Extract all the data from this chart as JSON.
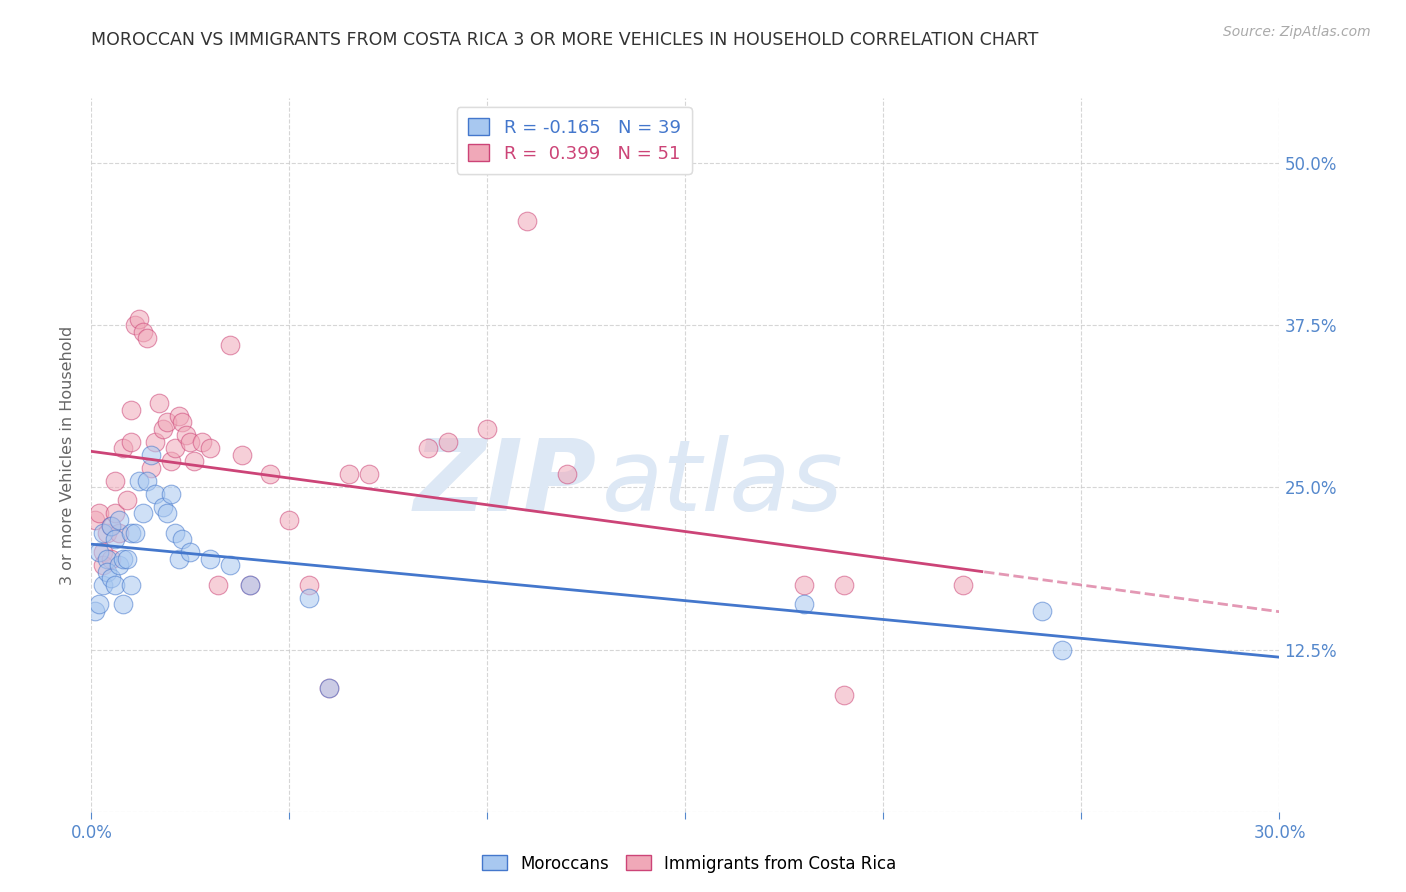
{
  "title": "MOROCCAN VS IMMIGRANTS FROM COSTA RICA 3 OR MORE VEHICLES IN HOUSEHOLD CORRELATION CHART",
  "source": "Source: ZipAtlas.com",
  "ylabel": "3 or more Vehicles in Household",
  "xlim": [
    0.0,
    0.3
  ],
  "ylim": [
    0.0,
    0.55
  ],
  "yticks": [
    0.0,
    0.125,
    0.25,
    0.375,
    0.5
  ],
  "ytick_labels": [
    "",
    "12.5%",
    "25.0%",
    "37.5%",
    "50.0%"
  ],
  "xticks": [
    0.0,
    0.05,
    0.1,
    0.15,
    0.2,
    0.25,
    0.3
  ],
  "xtick_labels": [
    "0.0%",
    "",
    "",
    "",
    "",
    "",
    "30.0%"
  ],
  "moroccan_color": "#a8c8f0",
  "costa_rica_color": "#f0a8b8",
  "moroccan_line_color": "#4477cc",
  "costa_rica_line_color": "#cc4477",
  "background_color": "#ffffff",
  "grid_color": "#cccccc",
  "watermark_zip": "ZIP",
  "watermark_atlas": "atlas",
  "watermark_color": "#dde8f5",
  "title_color": "#333333",
  "axis_label_color": "#666666",
  "tick_color": "#5588cc",
  "moroccan_R": -0.165,
  "moroccan_N": 39,
  "costa_rica_R": 0.399,
  "costa_rica_N": 51,
  "moroccan_x": [
    0.001,
    0.002,
    0.002,
    0.003,
    0.003,
    0.004,
    0.004,
    0.005,
    0.005,
    0.006,
    0.006,
    0.007,
    0.007,
    0.008,
    0.008,
    0.009,
    0.01,
    0.01,
    0.011,
    0.012,
    0.013,
    0.014,
    0.015,
    0.016,
    0.018,
    0.019,
    0.02,
    0.021,
    0.022,
    0.023,
    0.025,
    0.03,
    0.035,
    0.04,
    0.055,
    0.06,
    0.18,
    0.24,
    0.245
  ],
  "moroccan_y": [
    0.155,
    0.2,
    0.16,
    0.215,
    0.175,
    0.195,
    0.185,
    0.22,
    0.18,
    0.21,
    0.175,
    0.225,
    0.19,
    0.195,
    0.16,
    0.195,
    0.215,
    0.175,
    0.215,
    0.255,
    0.23,
    0.255,
    0.275,
    0.245,
    0.235,
    0.23,
    0.245,
    0.215,
    0.195,
    0.21,
    0.2,
    0.195,
    0.19,
    0.175,
    0.165,
    0.095,
    0.16,
    0.155,
    0.125
  ],
  "costa_rica_x": [
    0.001,
    0.002,
    0.003,
    0.003,
    0.004,
    0.005,
    0.005,
    0.006,
    0.006,
    0.007,
    0.008,
    0.009,
    0.01,
    0.01,
    0.011,
    0.012,
    0.013,
    0.014,
    0.015,
    0.016,
    0.017,
    0.018,
    0.019,
    0.02,
    0.021,
    0.022,
    0.023,
    0.024,
    0.025,
    0.026,
    0.028,
    0.03,
    0.032,
    0.035,
    0.038,
    0.04,
    0.045,
    0.05,
    0.055,
    0.06,
    0.065,
    0.07,
    0.085,
    0.09,
    0.1,
    0.11,
    0.12,
    0.18,
    0.19,
    0.22,
    0.19
  ],
  "costa_rica_y": [
    0.225,
    0.23,
    0.2,
    0.19,
    0.215,
    0.22,
    0.195,
    0.255,
    0.23,
    0.215,
    0.28,
    0.24,
    0.31,
    0.285,
    0.375,
    0.38,
    0.37,
    0.365,
    0.265,
    0.285,
    0.315,
    0.295,
    0.3,
    0.27,
    0.28,
    0.305,
    0.3,
    0.29,
    0.285,
    0.27,
    0.285,
    0.28,
    0.175,
    0.36,
    0.275,
    0.175,
    0.26,
    0.225,
    0.175,
    0.095,
    0.26,
    0.26,
    0.28,
    0.285,
    0.295,
    0.455,
    0.26,
    0.175,
    0.175,
    0.175,
    0.09
  ]
}
